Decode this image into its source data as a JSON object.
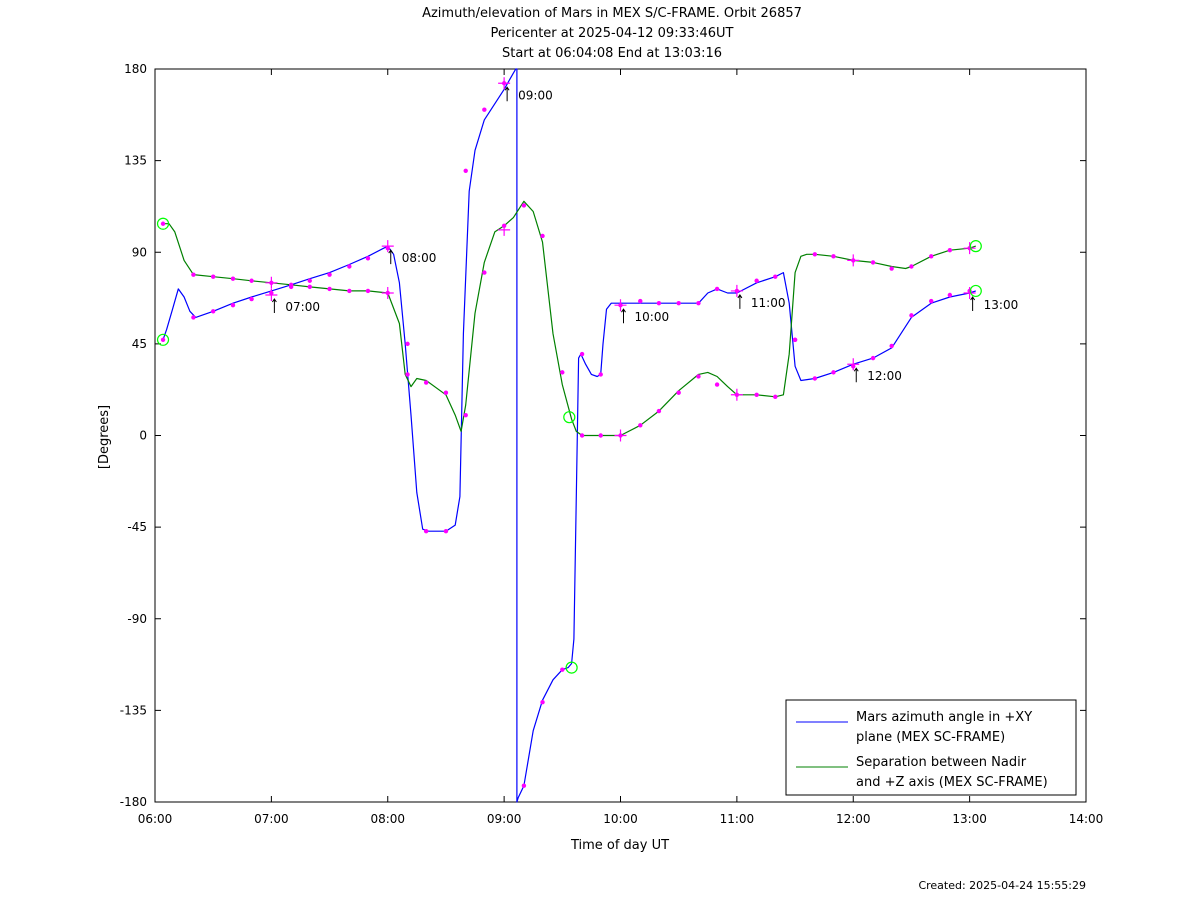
{
  "chart_data": {
    "type": "line",
    "title_lines": [
      "Azimuth/elevation of Mars in MEX S/C-FRAME.  Orbit 26857",
      "Pericenter at 2025-04-12 09:33:46UT",
      "Start at 06:04:08 End at 13:03:16"
    ],
    "xlabel": "Time of day UT",
    "ylabel": "[Degrees]",
    "xlim": [
      6,
      14
    ],
    "ylim": [
      -180,
      180
    ],
    "x_ticks": [
      6,
      7,
      8,
      9,
      10,
      11,
      12,
      13,
      14
    ],
    "x_tick_labels": [
      "06:00",
      "07:00",
      "08:00",
      "09:00",
      "10:00",
      "11:00",
      "12:00",
      "13:00",
      "14:00"
    ],
    "y_ticks": [
      180,
      135,
      90,
      45,
      0,
      -45,
      -90,
      -135,
      -180
    ],
    "y_tick_labels": [
      "180",
      "135",
      "90",
      "45",
      "0",
      "-45",
      "-90",
      "-135",
      "-180"
    ],
    "legend_position": "bottom-right",
    "series": [
      {
        "name": "Mars azimuth angle in +XY plane (MEX SC-FRAME)",
        "legend_lines": [
          "Mars azimuth angle in +XY",
          "plane (MEX SC-FRAME)"
        ],
        "color": "#0000ff",
        "x": [
          6.069,
          6.1,
          6.15,
          6.2,
          6.25,
          6.3,
          6.35,
          6.5,
          6.67,
          6.83,
          7.0,
          7.17,
          7.33,
          7.5,
          7.67,
          7.83,
          8.0,
          8.05,
          8.1,
          8.15,
          8.2,
          8.25,
          8.3,
          8.35,
          8.5,
          8.58,
          8.62,
          8.65,
          8.7,
          8.75,
          8.83,
          9.0,
          9.05,
          9.08,
          9.1,
          9.11,
          9.11,
          9.12,
          9.17,
          9.25,
          9.33,
          9.42,
          9.5,
          9.55,
          9.58,
          9.6,
          9.62,
          9.64,
          9.66,
          9.7,
          9.75,
          9.8,
          9.83,
          9.85,
          9.88,
          9.92,
          10.0,
          10.17,
          10.33,
          10.5,
          10.67,
          10.75,
          10.83,
          10.92,
          11.0,
          11.17,
          11.33,
          11.4,
          11.45,
          11.5,
          11.55,
          11.67,
          11.83,
          12.0,
          12.17,
          12.33,
          12.5,
          12.67,
          12.83,
          13.0,
          13.053
        ],
        "y": [
          47,
          52,
          62,
          72,
          68,
          61,
          58,
          61,
          65,
          68,
          71,
          74,
          77,
          80,
          84,
          88,
          93,
          89,
          75,
          45,
          10,
          -28,
          -46,
          -47,
          -47,
          -44,
          -30,
          50,
          120,
          140,
          155,
          170,
          175,
          178,
          180,
          180,
          -180,
          -178,
          -172,
          -145,
          -130,
          -120,
          -115,
          -114,
          -112,
          -100,
          -30,
          38,
          40,
          35,
          30,
          29,
          30,
          45,
          62,
          65,
          65,
          65,
          65,
          65,
          65,
          70,
          72,
          70,
          70,
          75,
          78,
          80,
          65,
          34,
          27,
          28,
          31,
          35,
          38,
          43,
          58,
          65,
          68,
          70,
          71
        ],
        "markers_x": [
          6.069,
          6.33,
          6.5,
          6.67,
          6.83,
          7.0,
          7.17,
          7.33,
          7.5,
          7.67,
          7.83,
          8.0,
          8.17,
          8.33,
          8.5,
          8.67,
          8.83,
          9.0,
          9.17,
          9.33,
          9.5,
          9.67,
          9.83,
          10.0,
          10.17,
          10.33,
          10.5,
          10.67,
          10.83,
          11.0,
          11.17,
          11.33,
          11.5,
          11.67,
          11.83,
          12.0,
          12.17,
          12.33,
          12.5,
          12.67,
          12.83,
          13.0
        ],
        "markers_y": [
          47,
          58,
          61,
          64,
          67,
          70,
          73,
          76,
          79,
          83,
          87,
          92,
          45,
          -47,
          -47,
          130,
          160,
          173,
          -172,
          -131,
          -115,
          40,
          30,
          64,
          66,
          65,
          65,
          65,
          72,
          71,
          76,
          78,
          47,
          28,
          31,
          34,
          38,
          44,
          59,
          66,
          69,
          71
        ],
        "crosses_x": [
          7.0,
          8.0,
          9.0,
          10.0,
          11.0,
          12.0,
          13.0
        ],
        "crosses_y": [
          69,
          93,
          173,
          64,
          71,
          35,
          70
        ],
        "circles_x": [
          6.069,
          9.58
        ],
        "circles_y": [
          47,
          -114
        ]
      },
      {
        "name": "Separation between Nadir and +Z axis (MEX SC-FRAME)",
        "legend_lines": [
          "Separation between Nadir",
          "and +Z axis (MEX SC-FRAME)"
        ],
        "color": "#008000",
        "x": [
          6.069,
          6.12,
          6.17,
          6.25,
          6.33,
          6.5,
          6.67,
          6.83,
          7.0,
          7.17,
          7.33,
          7.5,
          7.67,
          7.83,
          8.0,
          8.1,
          8.15,
          8.2,
          8.25,
          8.33,
          8.5,
          8.58,
          8.63,
          8.67,
          8.75,
          8.83,
          8.92,
          9.0,
          9.08,
          9.17,
          9.25,
          9.33,
          9.42,
          9.5,
          9.58,
          9.62,
          9.67,
          9.83,
          10.0,
          10.17,
          10.33,
          10.5,
          10.67,
          10.75,
          10.83,
          10.92,
          11.0,
          11.17,
          11.33,
          11.4,
          11.45,
          11.5,
          11.55,
          11.6,
          11.67,
          11.83,
          12.0,
          12.17,
          12.33,
          12.45,
          12.5,
          12.67,
          12.83,
          13.0,
          13.053
        ],
        "y": [
          104,
          104,
          100,
          86,
          79,
          78,
          77,
          76,
          75,
          74,
          73,
          72,
          71,
          71,
          70,
          55,
          30,
          24,
          28,
          27,
          20,
          10,
          2,
          15,
          60,
          85,
          100,
          103,
          107,
          115,
          110,
          95,
          50,
          25,
          8,
          2,
          0,
          0,
          0,
          5,
          12,
          22,
          30,
          31,
          29,
          24,
          20,
          20,
          19,
          20,
          40,
          80,
          88,
          89,
          89,
          88,
          86,
          85,
          83,
          82,
          83,
          88,
          91,
          92,
          93
        ],
        "markers_x": [
          6.069,
          6.33,
          6.5,
          6.67,
          6.83,
          7.0,
          7.17,
          7.33,
          7.5,
          7.67,
          7.83,
          8.0,
          8.17,
          8.33,
          8.5,
          8.67,
          8.83,
          9.0,
          9.17,
          9.33,
          9.5,
          9.67,
          9.83,
          10.0,
          10.17,
          10.33,
          10.5,
          10.67,
          10.83,
          11.0,
          11.17,
          11.33,
          11.5,
          11.67,
          11.83,
          12.0,
          12.17,
          12.33,
          12.5,
          12.67,
          12.83,
          13.0
        ],
        "markers_y": [
          104,
          79,
          78,
          77,
          76,
          75,
          74,
          73,
          72,
          71,
          71,
          70,
          30,
          26,
          21,
          10,
          80,
          103,
          113,
          98,
          31,
          0,
          0,
          0,
          5,
          12,
          21,
          29,
          25,
          20,
          20,
          19,
          47,
          89,
          88,
          86,
          85,
          82,
          83,
          88,
          91,
          92
        ],
        "crosses_x": [
          7.0,
          8.0,
          9.0,
          10.0,
          11.0,
          12.0,
          13.0
        ],
        "crosses_y": [
          75,
          70,
          101,
          0,
          20,
          86,
          92
        ],
        "circles_x": [
          6.069,
          9.56,
          13.053,
          13.053
        ],
        "circles_y": [
          104,
          9,
          93,
          71
        ]
      }
    ],
    "annotations": [
      {
        "text": "07:00",
        "x": 7.0,
        "y": 69
      },
      {
        "text": "08:00",
        "x": 8.0,
        "y": 93
      },
      {
        "text": "09:00",
        "x": 9.0,
        "y": 173
      },
      {
        "text": "10:00",
        "x": 10.0,
        "y": 64
      },
      {
        "text": "11:00",
        "x": 11.0,
        "y": 71
      },
      {
        "text": "12:00",
        "x": 12.0,
        "y": 35
      },
      {
        "text": "13:00",
        "x": 13.0,
        "y": 70
      }
    ],
    "marker_color": "#ff00ff",
    "circle_color": "#00ff00"
  },
  "footer": {
    "created": "Created: 2025-04-24 15:55:29"
  }
}
